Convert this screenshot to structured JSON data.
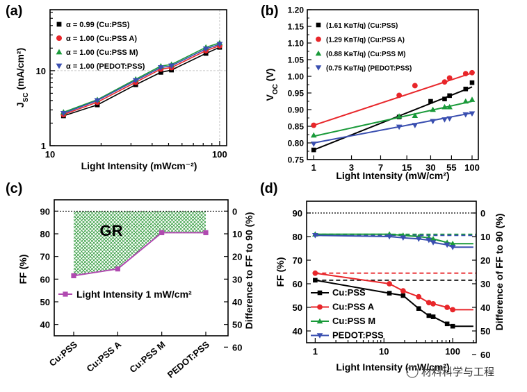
{
  "watermark": "材料科学与工程",
  "chart_data": [
    {
      "panel": "(a)",
      "type": "line",
      "xscale": "log",
      "yscale": "log",
      "xlim": [
        10,
        110
      ],
      "ylim": [
        1,
        65
      ],
      "xlabel": "Light Intensity (mWcm⁻²)",
      "ylabel": "J",
      "ylabel_sub": "SC",
      "ylabel_unit": " (mA/cm²)",
      "xticks": [
        10,
        100
      ],
      "xtick_labels": [
        "10",
        "100"
      ],
      "yticks": [
        1,
        10
      ],
      "ytick_labels": [
        "1",
        "10"
      ],
      "legend_position": "top-left",
      "series": [
        {
          "name": "α = 0.99 (Cu:PSS)",
          "color": "#000000",
          "marker": "square",
          "x": [
            12,
            19,
            32,
            45,
            52,
            83,
            100
          ],
          "y": [
            2.5,
            3.5,
            6.5,
            9.5,
            10.2,
            17,
            20.5
          ]
        },
        {
          "name": "α = 1.00 (Cu:PSS A)",
          "color": "#e8262a",
          "marker": "circle",
          "x": [
            12,
            19,
            32,
            45,
            52,
            83,
            100
          ],
          "y": [
            2.6,
            3.8,
            7.0,
            10.5,
            11.0,
            18.5,
            21.5
          ]
        },
        {
          "name": "α = 1.00 (Cu:PSS M)",
          "color": "#1a9a3a",
          "marker": "triangle-up",
          "x": [
            12,
            19,
            32,
            45,
            52,
            83,
            100
          ],
          "y": [
            2.8,
            4.1,
            7.7,
            11.5,
            12.1,
            20.5,
            23.5
          ]
        },
        {
          "name": "α = 1.00 (PEDOT:PSS)",
          "color": "#3a4fb0",
          "marker": "triangle-down",
          "x": [
            12,
            19,
            32,
            45,
            52,
            83,
            100
          ],
          "y": [
            2.7,
            4.0,
            7.4,
            11.0,
            11.6,
            19.5,
            22.5
          ]
        }
      ]
    },
    {
      "panel": "(b)",
      "type": "line",
      "xscale": "log",
      "xlim": [
        0.83,
        120
      ],
      "ylim": [
        0.75,
        1.2
      ],
      "xlabel": "Light Intensity (mW/cm²)",
      "ylabel": "V",
      "ylabel_sub": "OC",
      "ylabel_unit": " (V)",
      "xticks": [
        1,
        3,
        7,
        15,
        30,
        55,
        100
      ],
      "xtick_labels": [
        "1",
        "3",
        "7",
        "15",
        "30",
        "55",
        "100"
      ],
      "yticks": [
        0.75,
        0.8,
        0.85,
        0.9,
        0.95,
        1.0,
        1.05,
        1.1,
        1.15,
        1.2
      ],
      "ytick_labels": [
        "0.75",
        "0.80",
        "0.85",
        "0.90",
        "0.95",
        "1.00",
        "1.05",
        "1.10",
        "1.15",
        "1.20"
      ],
      "legend_position": "top-left",
      "series": [
        {
          "name": "(1.61 KʙT/q) (Cu:PSS)",
          "color": "#000000",
          "marker": "square",
          "x": [
            1,
            12,
            30,
            45,
            52,
            83,
            100
          ],
          "y": [
            0.779,
            0.878,
            0.925,
            0.932,
            0.942,
            0.962,
            0.981
          ]
        },
        {
          "name": "(1.29 KʙT/q) (Cu:PSS A)",
          "color": "#e8262a",
          "marker": "circle",
          "x": [
            1,
            12,
            19,
            45,
            52,
            83,
            100
          ],
          "y": [
            0.853,
            0.943,
            0.972,
            0.983,
            0.995,
            1.008,
            1.011
          ]
        },
        {
          "name": "(0.88 KʙT/q) (Cu:PSS M)",
          "color": "#1a9a3a",
          "marker": "triangle-up",
          "x": [
            1,
            12,
            19,
            32,
            45,
            52,
            83,
            100
          ],
          "y": [
            0.823,
            0.88,
            0.882,
            0.9,
            0.908,
            0.908,
            0.925,
            0.93
          ]
        },
        {
          "name": "(0.75 KʙT/q) (PEDOT:PSS)",
          "color": "#3a4fb0",
          "marker": "triangle-down",
          "x": [
            1,
            12,
            19,
            32,
            45,
            52,
            83,
            100
          ],
          "y": [
            0.797,
            0.848,
            0.853,
            0.865,
            0.87,
            0.873,
            0.885,
            0.888
          ]
        }
      ],
      "fits": [
        {
          "color": "#000000",
          "y_at_1": 0.779,
          "y_at_100": 0.968
        },
        {
          "color": "#e8262a",
          "y_at_1": 0.853,
          "y_at_100": 1.01
        },
        {
          "color": "#1a9a3a",
          "y_at_1": 0.82,
          "y_at_100": 0.925
        },
        {
          "color": "#3a4fb0",
          "y_at_1": 0.8,
          "y_at_100": 0.89
        }
      ]
    },
    {
      "panel": "(c)",
      "type": "line",
      "categories": [
        "Cu:PSS",
        "Cu:PSS A",
        "Cu:PSS M",
        "PEDOT:PSS"
      ],
      "ylabel": "FF (%)",
      "ylabel_right": "Difference to FF to 90 (%)",
      "ylim": [
        35,
        95
      ],
      "yticks": [
        40,
        50,
        60,
        70,
        80,
        90
      ],
      "ytick_labels": [
        "40",
        "50",
        "60",
        "70",
        "80",
        "90"
      ],
      "yticks_right_labels": [
        "0",
        "10",
        "20",
        "30",
        "40",
        "50",
        "60"
      ],
      "reference_line": 90,
      "shaded_region": "GR",
      "legend_position": "lower-left",
      "series": [
        {
          "name": "Light Intensity 1 mW/cm²",
          "color": "#b04ab0",
          "marker": "square",
          "values": [
            61.5,
            64.5,
            80.5,
            80.5
          ]
        }
      ]
    },
    {
      "panel": "(d)",
      "type": "line",
      "xscale": "log",
      "xlim": [
        0.75,
        220
      ],
      "ylim": [
        35,
        95
      ],
      "xlabel": "Light Intensity (mW/cm²)",
      "ylabel": "FF (%)",
      "ylabel_right": "Difference of FF to 90 (%)",
      "xticks": [
        1,
        10,
        100
      ],
      "xtick_labels": [
        "1",
        "10",
        "100"
      ],
      "yticks": [
        40,
        50,
        60,
        70,
        80,
        90
      ],
      "ytick_labels": [
        "40",
        "50",
        "60",
        "70",
        "80",
        "90"
      ],
      "yticks_right_labels": [
        "0",
        "10",
        "20",
        "30",
        "40",
        "50",
        "60"
      ],
      "reference_line": 90,
      "legend_position": "lower-left",
      "series": [
        {
          "name": "Cu:PSS",
          "color": "#000000",
          "marker": "square",
          "ref_level": 61.5,
          "x": [
            1,
            12,
            19,
            32,
            45,
            52,
            83,
            100,
            200
          ],
          "y": [
            61.5,
            56,
            55,
            49.5,
            46.5,
            46,
            43,
            42,
            42
          ]
        },
        {
          "name": "Cu:PSS A",
          "color": "#e8262a",
          "marker": "circle",
          "ref_level": 64.5,
          "x": [
            1,
            12,
            19,
            32,
            45,
            52,
            83,
            100,
            200
          ],
          "y": [
            64.5,
            60,
            57,
            54.5,
            52,
            51.5,
            50,
            49,
            49
          ]
        },
        {
          "name": "Cu:PSS M",
          "color": "#1a9a3a",
          "marker": "triangle-up",
          "ref_level": 81,
          "x": [
            1,
            12,
            19,
            32,
            45,
            52,
            83,
            100,
            200
          ],
          "y": [
            81,
            81,
            80.5,
            80,
            79.5,
            79,
            77.5,
            77,
            77
          ]
        },
        {
          "name": "PEDOT:PSS",
          "color": "#3a4fb0",
          "marker": "triangle-down",
          "ref_level": 80.5,
          "x": [
            1,
            12,
            19,
            32,
            45,
            52,
            83,
            100,
            200
          ],
          "y": [
            80.5,
            80,
            79.5,
            79,
            78.5,
            77.5,
            76.5,
            75.5,
            75.5
          ]
        }
      ]
    }
  ]
}
